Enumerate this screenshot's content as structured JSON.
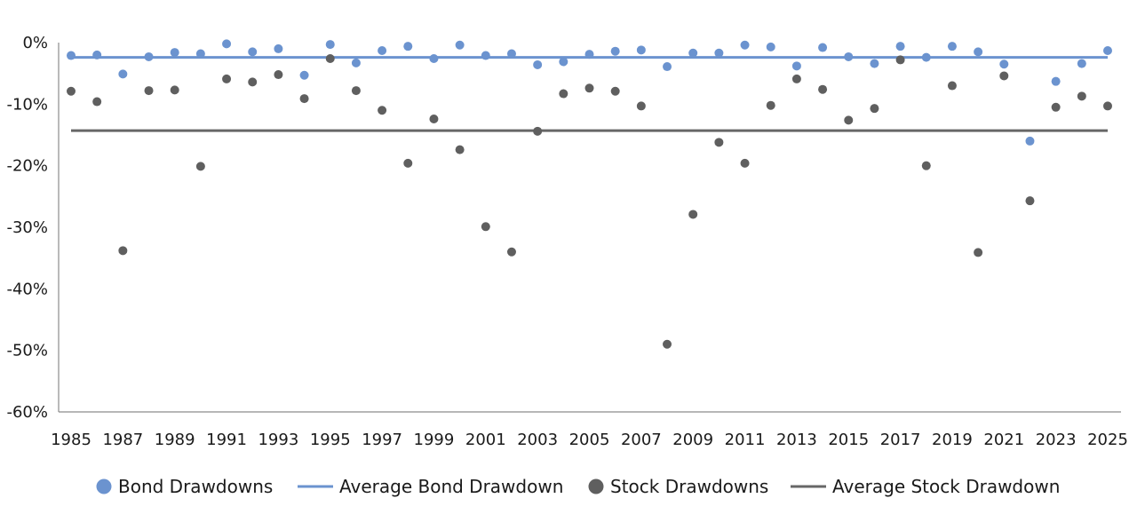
{
  "chart_data": {
    "type": "scatter",
    "title": "",
    "xlabel": "",
    "ylabel": "",
    "x": [
      1985,
      1986,
      1987,
      1988,
      1989,
      1990,
      1991,
      1992,
      1993,
      1994,
      1995,
      1996,
      1997,
      1998,
      1999,
      2000,
      2001,
      2002,
      2003,
      2004,
      2005,
      2006,
      2007,
      2008,
      2009,
      2010,
      2011,
      2012,
      2013,
      2014,
      2015,
      2016,
      2017,
      2018,
      2019,
      2020,
      2021,
      2022,
      2023,
      2024,
      2025
    ],
    "x_tick_labels": [
      "1985",
      "1987",
      "1989",
      "1991",
      "1993",
      "1995",
      "1997",
      "1999",
      "2001",
      "2003",
      "2005",
      "2007",
      "2009",
      "2011",
      "2013",
      "2015",
      "2017",
      "2019",
      "2021",
      "2023",
      "2025"
    ],
    "ylim": [
      -60,
      0
    ],
    "y_ticks": [
      0,
      -10,
      -20,
      -30,
      -40,
      -50,
      -60
    ],
    "y_tick_labels": [
      "0%",
      "-10%",
      "-20%",
      "-30%",
      "-40%",
      "-50%",
      "-60%"
    ],
    "grid": false,
    "legend_position": "bottom",
    "series": [
      {
        "name": "Bond Drawdowns",
        "kind": "scatter",
        "color": "#6b93cf",
        "values": [
          -2.1,
          -2.0,
          -5.1,
          -2.3,
          -1.6,
          -1.8,
          -0.2,
          -1.5,
          -1.0,
          -5.3,
          -0.3,
          -3.3,
          -1.3,
          -0.6,
          -2.6,
          -0.4,
          -2.1,
          -1.8,
          -3.6,
          -3.1,
          -1.9,
          -1.4,
          -1.2,
          -3.9,
          -1.7,
          -1.7,
          -0.4,
          -0.7,
          -3.8,
          -0.8,
          -2.3,
          -3.4,
          -0.6,
          -2.4,
          -0.6,
          -1.5,
          -3.5,
          -16.0,
          -6.3,
          -3.4,
          -1.3
        ]
      },
      {
        "name": "Average Bond Drawdown",
        "kind": "line",
        "color": "#6b93cf",
        "value": -2.4
      },
      {
        "name": "Stock Drawdowns",
        "kind": "scatter",
        "color": "#5f5f5f",
        "values": [
          -7.9,
          -9.6,
          -33.8,
          -7.8,
          -7.7,
          -20.1,
          -5.9,
          -6.4,
          -5.2,
          -9.1,
          -2.6,
          -7.8,
          -11.0,
          -19.6,
          -12.4,
          -17.4,
          -29.9,
          -34.0,
          -14.4,
          -8.3,
          -7.4,
          -7.9,
          -10.3,
          -49.0,
          -27.9,
          -16.2,
          -19.6,
          -10.2,
          -5.9,
          -7.6,
          -12.6,
          -10.7,
          -2.8,
          -20.0,
          -7.0,
          -34.1,
          -5.4,
          -25.7,
          -10.5,
          -8.7,
          -10.3
        ]
      },
      {
        "name": "Average Stock Drawdown",
        "kind": "line",
        "color": "#676767",
        "value": -14.3
      }
    ]
  }
}
